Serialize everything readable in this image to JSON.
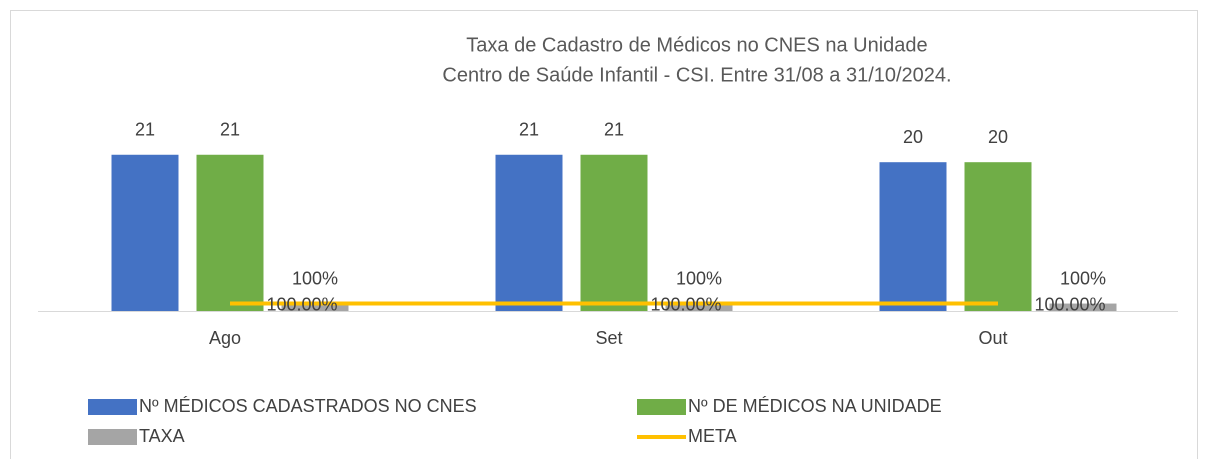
{
  "chart_data": {
    "type": "bar",
    "title": [
      "Taxa de Cadastro de Médicos no CNES na Unidade",
      "Centro de Saúde Infantil - CSI. Entre 31/08 a 31/10/2024."
    ],
    "categories": [
      "Ago",
      "Set",
      "Out"
    ],
    "ylim": [
      0,
      25
    ],
    "series": [
      {
        "name": "Nº MÉDICOS CADASTRADOS NO CNES",
        "color": "#4472c4",
        "type": "bar",
        "values": [
          21,
          21,
          20
        ]
      },
      {
        "name": "Nº DE MÉDICOS NA UNIDADE",
        "color": "#70ad47",
        "type": "bar",
        "values": [
          21,
          21,
          20
        ]
      },
      {
        "name": "TAXA",
        "color": "#a5a5a5",
        "type": "bar",
        "values": [
          1,
          1,
          1
        ],
        "value_labels": [
          "100%",
          "100%",
          "100%"
        ]
      },
      {
        "name": "META",
        "color": "#ffc000",
        "type": "line",
        "values": [
          1,
          1,
          1
        ],
        "value_labels": [
          "100.00%",
          "100.00%",
          "100.00%"
        ]
      }
    ]
  }
}
